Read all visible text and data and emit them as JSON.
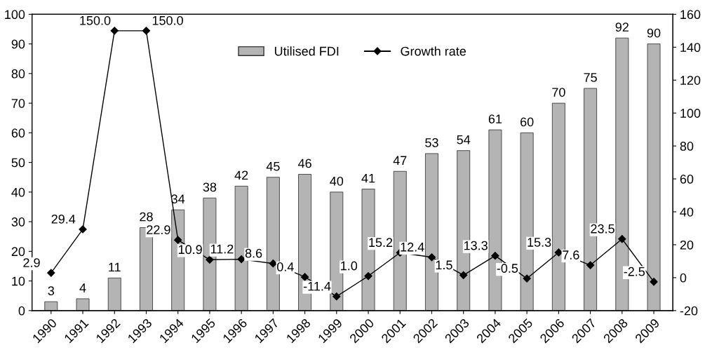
{
  "chart_data": {
    "type": "bar",
    "categories": [
      "1990",
      "1991",
      "1992",
      "1993",
      "1994",
      "1995",
      "1996",
      "1997",
      "1998",
      "1999",
      "2000",
      "2001",
      "2002",
      "2003",
      "2004",
      "2005",
      "2006",
      "2007",
      "2008",
      "2009"
    ],
    "series": [
      {
        "name": "Utilised FDI",
        "color": "#b4b4b4",
        "values": [
          3,
          4,
          11,
          28,
          34,
          38,
          42,
          45,
          46,
          40,
          41,
          47,
          53,
          54,
          61,
          60,
          70,
          75,
          92,
          90
        ],
        "data_labels": true
      },
      {
        "name": "Growth rate",
        "type": "line",
        "axis": "y2",
        "color": "#000000",
        "marker": "diamond",
        "values": [
          2.9,
          29.4,
          150.0,
          150.0,
          22.9,
          10.9,
          11.2,
          8.6,
          0.4,
          -11.4,
          1.0,
          15.2,
          12.4,
          1.5,
          13.3,
          -0.5,
          15.3,
          7.6,
          23.5,
          -2.5
        ],
        "value_labels": [
          "2.9",
          "29.4",
          "150.0",
          "150.0",
          "22.9",
          "10.9",
          "11.2",
          "8.6",
          "0.4",
          "-11.4",
          "1.0",
          "15.2",
          "12.4",
          "1.5",
          "13.3",
          "-0.5",
          "15.3",
          "7.6",
          "23.5",
          "-2.5"
        ]
      }
    ],
    "ylim": [
      0,
      100
    ],
    "yticks": [
      0,
      10,
      20,
      30,
      40,
      50,
      60,
      70,
      80,
      90,
      100
    ],
    "y2lim": [
      -20,
      160
    ],
    "y2ticks": [
      -20,
      0,
      20,
      40,
      60,
      80,
      100,
      120,
      140,
      160
    ],
    "grid": false,
    "legend": "top"
  }
}
